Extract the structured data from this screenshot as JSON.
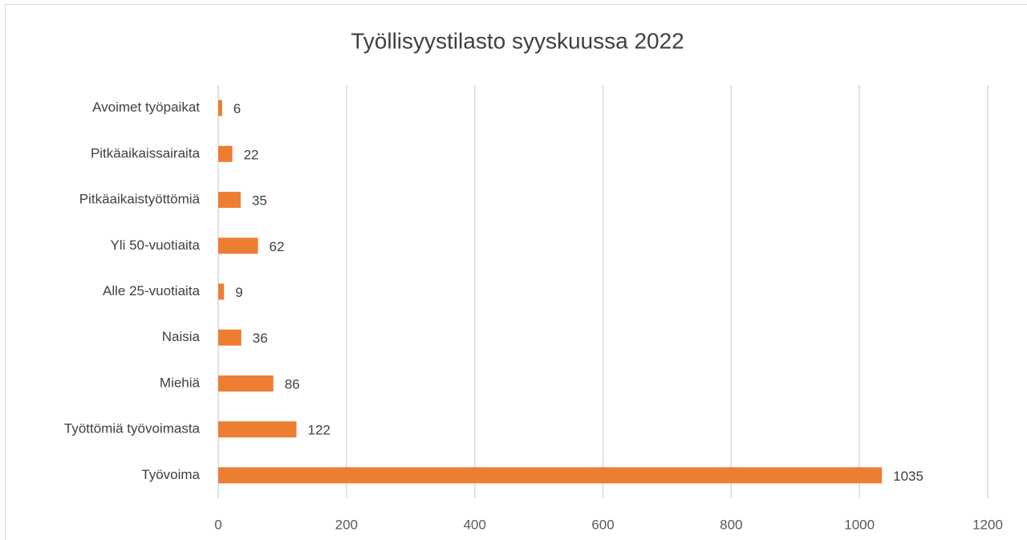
{
  "chart_data": {
    "type": "bar",
    "orientation": "horizontal",
    "title": "Työllisyystilasto syyskuussa  2022",
    "categories": [
      "Avoimet työpaikat",
      "Pitkäaikaissairaita",
      "Pitkäaikaistyöttömiä",
      "Yli 50-vuotiaita",
      "Alle 25-vuotiaita",
      "Naisia",
      "Miehiä",
      "Työttömiä työvoimasta",
      "Työvoima"
    ],
    "values": [
      6,
      22,
      35,
      62,
      9,
      36,
      86,
      122,
      1035
    ],
    "color": "#ed7d31",
    "xlim": [
      0,
      1200
    ],
    "xticks": [
      0,
      200,
      400,
      600,
      800,
      1000,
      1200
    ],
    "grid": true
  }
}
